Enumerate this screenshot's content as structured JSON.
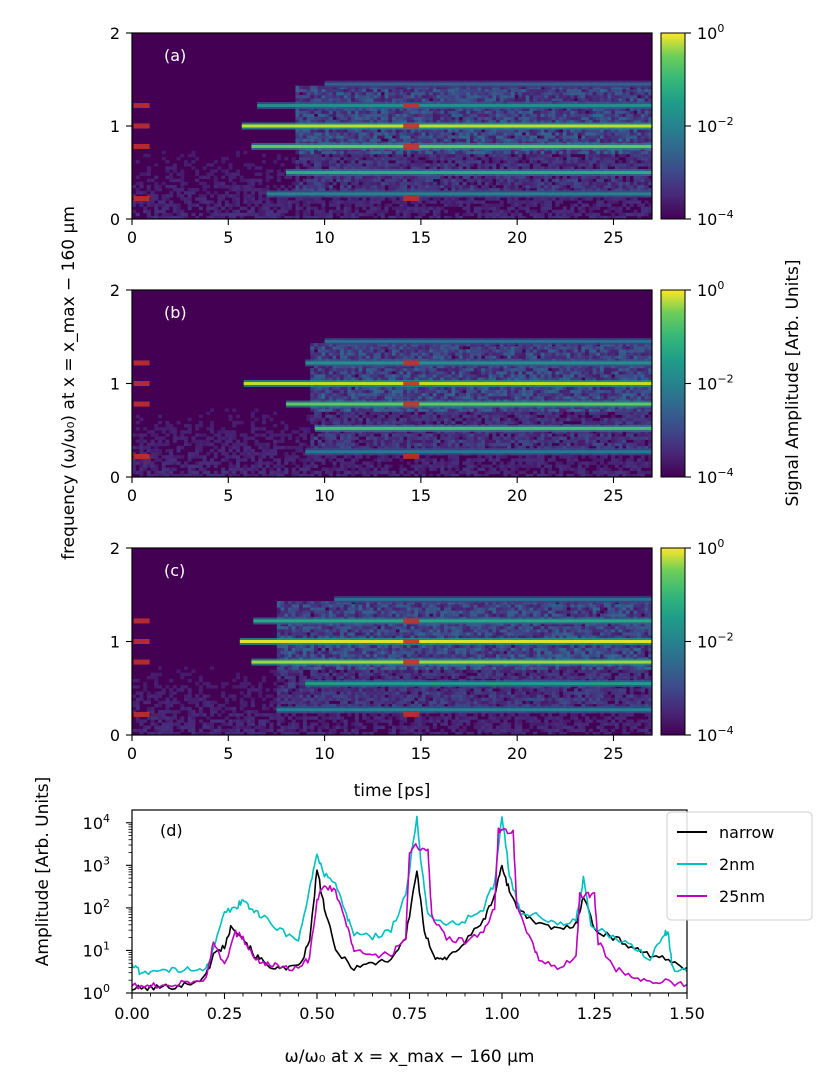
{
  "figure": {
    "shared_ylabel": "frequency (ω/ω₀) at x = x_max − 160 μm",
    "time_xlabel": "time [ps]",
    "colorbar_label": "Signal Amplitude [Arb. Units]",
    "colorbar_ticks": [
      "10",
      "10",
      "10"
    ],
    "colorbar_tick_exponents": [
      "0",
      "−2",
      "−4"
    ]
  },
  "chart_data": [
    {
      "type": "heatmap",
      "panel_label": "(a)",
      "xlabel": "",
      "xlim": [
        0,
        27
      ],
      "ylim": [
        0,
        2
      ],
      "xticks": [
        "0",
        "5",
        "10",
        "15",
        "20",
        "25"
      ],
      "xtick_values": [
        0,
        5,
        10,
        15,
        20,
        25
      ],
      "yticks": [
        "0",
        "1",
        "2"
      ],
      "ytick_values": [
        0,
        1,
        2
      ],
      "colorbar_range_log10": [
        -4,
        0
      ],
      "colormap": "viridis",
      "marker_times": [
        0.5,
        14.5
      ],
      "marker_freqs": [
        0.22,
        0.78,
        1.0,
        1.22
      ],
      "lines": [
        {
          "freq": 1.0,
          "t_start": 5.7,
          "intensity": 0.9
        },
        {
          "freq": 0.78,
          "t_start": 6.2,
          "intensity": 0.75
        },
        {
          "freq": 0.5,
          "t_start": 8.0,
          "intensity": 0.62
        },
        {
          "freq": 1.22,
          "t_start": 6.5,
          "intensity": 0.5
        },
        {
          "freq": 0.27,
          "t_start": 7.0,
          "intensity": 0.45
        },
        {
          "freq": 1.45,
          "t_start": 10.0,
          "intensity": 0.3
        }
      ],
      "noise_start_time": 8.5
    },
    {
      "type": "heatmap",
      "panel_label": "(b)",
      "xlabel": "",
      "xlim": [
        0,
        27
      ],
      "ylim": [
        0,
        2
      ],
      "xticks": [
        "0",
        "5",
        "10",
        "15",
        "20",
        "25"
      ],
      "xtick_values": [
        0,
        5,
        10,
        15,
        20,
        25
      ],
      "yticks": [
        "0",
        "1",
        "2"
      ],
      "ytick_values": [
        0,
        1,
        2
      ],
      "colorbar_range_log10": [
        -4,
        0
      ],
      "colormap": "viridis",
      "marker_times": [
        0.5,
        14.5
      ],
      "marker_freqs": [
        0.22,
        0.78,
        1.0,
        1.22
      ],
      "lines": [
        {
          "freq": 1.0,
          "t_start": 5.8,
          "intensity": 0.9
        },
        {
          "freq": 0.78,
          "t_start": 8.0,
          "intensity": 0.75
        },
        {
          "freq": 0.52,
          "t_start": 9.5,
          "intensity": 0.7
        },
        {
          "freq": 1.22,
          "t_start": 9.0,
          "intensity": 0.5
        },
        {
          "freq": 0.27,
          "t_start": 9.0,
          "intensity": 0.4
        },
        {
          "freq": 1.45,
          "t_start": 10.0,
          "intensity": 0.35
        }
      ],
      "noise_start_time": 9.2
    },
    {
      "type": "heatmap",
      "panel_label": "(c)",
      "xlabel": "time [ps]",
      "xlim": [
        0,
        27
      ],
      "ylim": [
        0,
        2
      ],
      "xticks": [
        "0",
        "5",
        "10",
        "15",
        "20",
        "25"
      ],
      "xtick_values": [
        0,
        5,
        10,
        15,
        20,
        25
      ],
      "yticks": [
        "0",
        "1",
        "2"
      ],
      "ytick_values": [
        0,
        1,
        2
      ],
      "colorbar_range_log10": [
        -4,
        0
      ],
      "colormap": "viridis",
      "marker_times": [
        0.5,
        14.5
      ],
      "marker_freqs": [
        0.22,
        0.78,
        1.0,
        1.22
      ],
      "lines": [
        {
          "freq": 1.0,
          "t_start": 5.6,
          "intensity": 0.95
        },
        {
          "freq": 0.78,
          "t_start": 6.2,
          "intensity": 0.85
        },
        {
          "freq": 1.22,
          "t_start": 6.3,
          "intensity": 0.6
        },
        {
          "freq": 0.55,
          "t_start": 9.0,
          "intensity": 0.55
        },
        {
          "freq": 0.27,
          "t_start": 7.5,
          "intensity": 0.45
        },
        {
          "freq": 1.45,
          "t_start": 10.5,
          "intensity": 0.35
        }
      ],
      "noise_start_time": 7.5
    },
    {
      "type": "line",
      "panel_label": "(d)",
      "xlabel": "ω/ω₀ at x = x_max − 160 μm",
      "ylabel": "Amplitude [Arb. Units]",
      "xlim": [
        0,
        1.5
      ],
      "ylim_log10": [
        0,
        4.3
      ],
      "xticks": [
        "0.00",
        "0.25",
        "0.50",
        "0.75",
        "1.00",
        "1.25",
        "1.50"
      ],
      "xtick_values": [
        0,
        0.25,
        0.5,
        0.75,
        1.0,
        1.25,
        1.5
      ],
      "yticks": [
        "10",
        "10",
        "10",
        "10",
        "10"
      ],
      "ytick_exponents": [
        "0",
        "1",
        "2",
        "3",
        "4"
      ],
      "ytick_values_log10": [
        0,
        1,
        2,
        3,
        4
      ],
      "legend_position": "upper-right",
      "series": [
        {
          "name": "narrow",
          "color": "#000000",
          "x": [
            0.0,
            0.05,
            0.1,
            0.15,
            0.2,
            0.22,
            0.25,
            0.27,
            0.3,
            0.33,
            0.36,
            0.4,
            0.45,
            0.48,
            0.5,
            0.52,
            0.55,
            0.6,
            0.65,
            0.7,
            0.74,
            0.77,
            0.79,
            0.82,
            0.85,
            0.9,
            0.95,
            0.98,
            1.0,
            1.02,
            1.05,
            1.1,
            1.15,
            1.2,
            1.22,
            1.25,
            1.3,
            1.35,
            1.4,
            1.45,
            1.5
          ],
          "y_log10": [
            0.1,
            0.12,
            0.15,
            0.2,
            0.4,
            0.9,
            1.1,
            1.6,
            1.3,
            0.9,
            0.7,
            0.55,
            0.6,
            1.2,
            2.9,
            2.0,
            1.0,
            0.6,
            0.7,
            0.8,
            1.3,
            2.9,
            1.4,
            0.85,
            0.8,
            1.2,
            1.7,
            2.3,
            3.0,
            2.4,
            1.9,
            1.6,
            1.5,
            1.6,
            2.3,
            1.5,
            1.3,
            1.1,
            0.9,
            0.75,
            0.6
          ]
        },
        {
          "name": "2nm",
          "color": "#00bfbf",
          "x": [
            0.0,
            0.02,
            0.05,
            0.1,
            0.15,
            0.2,
            0.22,
            0.25,
            0.28,
            0.3,
            0.32,
            0.35,
            0.4,
            0.45,
            0.48,
            0.5,
            0.52,
            0.55,
            0.58,
            0.6,
            0.65,
            0.7,
            0.74,
            0.77,
            0.78,
            0.8,
            0.85,
            0.9,
            0.95,
            0.98,
            1.0,
            1.02,
            1.05,
            1.1,
            1.15,
            1.2,
            1.22,
            1.24,
            1.3,
            1.35,
            1.4,
            1.44,
            1.45,
            1.46,
            1.5
          ],
          "y_log10": [
            0.7,
            0.5,
            0.5,
            0.52,
            0.55,
            0.6,
            1.0,
            1.9,
            2.0,
            2.2,
            2.0,
            1.8,
            1.5,
            1.2,
            2.5,
            3.2,
            2.8,
            2.6,
            1.8,
            1.4,
            1.3,
            1.5,
            2.3,
            4.1,
            3.2,
            1.8,
            1.6,
            1.7,
            2.0,
            2.6,
            4.2,
            2.8,
            1.9,
            1.8,
            1.6,
            1.7,
            2.7,
            1.6,
            1.3,
            1.1,
            0.8,
            1.4,
            1.4,
            0.6,
            0.5
          ]
        },
        {
          "name": "25nm",
          "color": "#bf00bf",
          "x": [
            0.0,
            0.05,
            0.1,
            0.15,
            0.2,
            0.22,
            0.25,
            0.28,
            0.3,
            0.33,
            0.36,
            0.4,
            0.45,
            0.48,
            0.5,
            0.52,
            0.55,
            0.58,
            0.6,
            0.65,
            0.7,
            0.74,
            0.75,
            0.77,
            0.8,
            0.81,
            0.85,
            0.9,
            0.95,
            0.98,
            0.99,
            1.0,
            1.03,
            1.04,
            1.08,
            1.1,
            1.15,
            1.2,
            1.21,
            1.23,
            1.25,
            1.26,
            1.3,
            1.35,
            1.4,
            1.45,
            1.5
          ],
          "y_log10": [
            0.15,
            0.18,
            0.2,
            0.25,
            0.35,
            1.2,
            0.7,
            1.4,
            1.3,
            0.8,
            0.7,
            0.6,
            0.6,
            0.8,
            2.2,
            2.5,
            2.4,
            1.6,
            1.0,
            0.9,
            0.9,
            1.3,
            3.35,
            3.45,
            3.35,
            1.8,
            1.3,
            1.2,
            1.4,
            2.0,
            3.8,
            3.85,
            3.8,
            2.0,
            1.2,
            0.8,
            0.6,
            0.8,
            2.3,
            2.3,
            2.3,
            1.2,
            0.6,
            0.4,
            0.3,
            0.25,
            0.2
          ]
        }
      ]
    }
  ]
}
